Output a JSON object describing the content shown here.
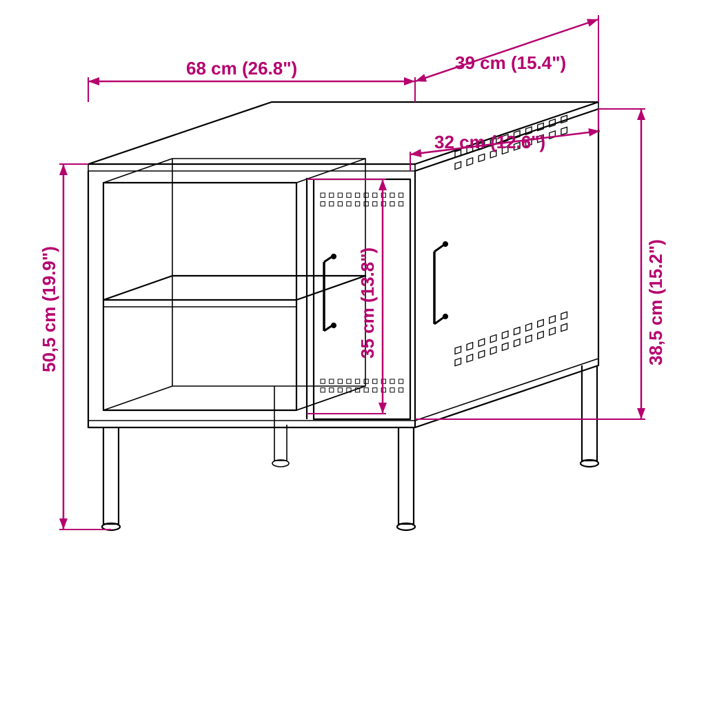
{
  "diagram": {
    "type": "technical-line-drawing",
    "background_color": "#ffffff",
    "line_color": "#000000",
    "dimension_color": "#b5006f",
    "font_family": "Arial",
    "label_fontsize": 26,
    "arrow_len": 16,
    "arrow_half": 6
  },
  "dimensions": {
    "width": {
      "text": "68 cm (26.8\")"
    },
    "depth": {
      "text": "39 cm (15.4\")"
    },
    "door_width": {
      "text": "32 cm (12.6\")"
    },
    "shelf_height": {
      "text": "35 cm (13.8\")"
    },
    "total_height": {
      "text": "50,5 cm (19.9\")"
    },
    "door_height": {
      "text": "38,5 cm (15.2\")"
    }
  }
}
